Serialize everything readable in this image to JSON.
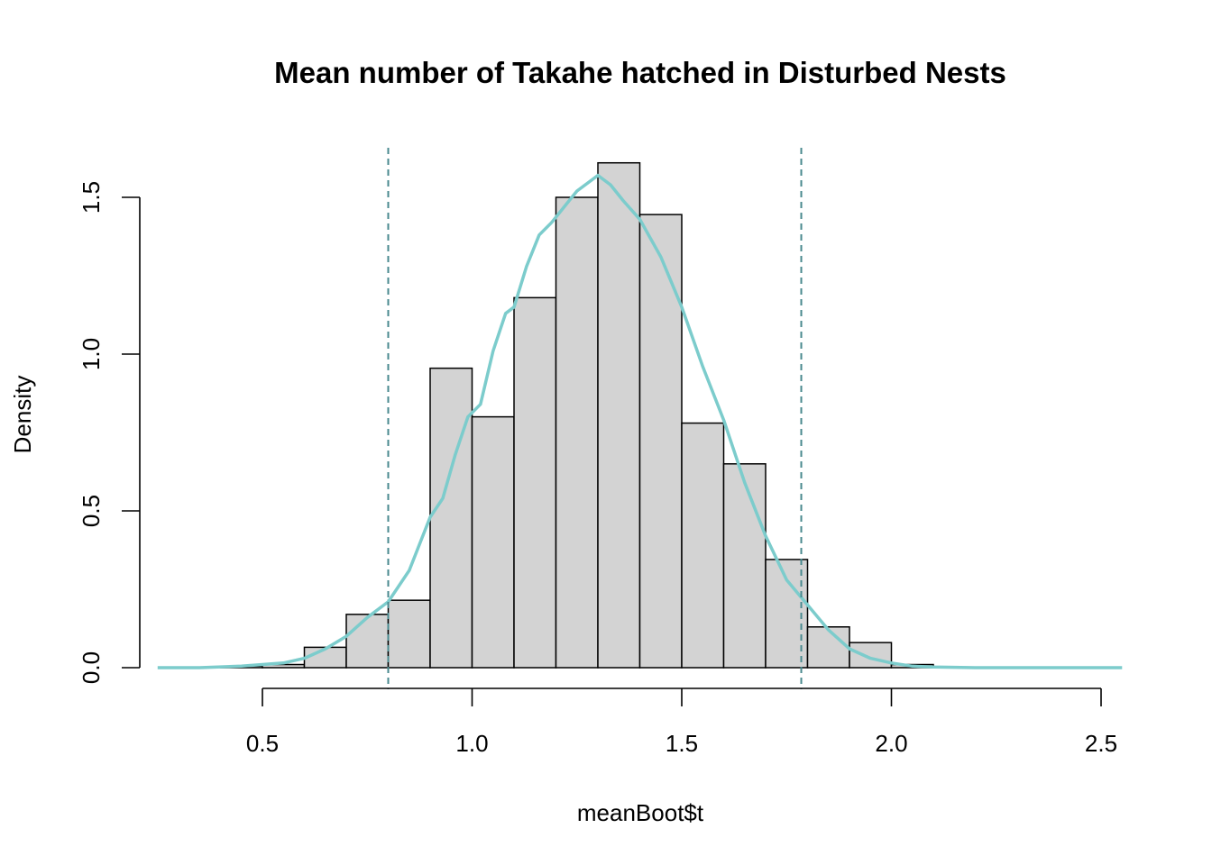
{
  "chart_data": {
    "type": "histogram",
    "title": "Mean number of Takahe hatched in Disturbed Nests",
    "xlabel": "meanBoot$t",
    "ylabel": "Density",
    "xlim": [
      0.25,
      2.55
    ],
    "ylim": [
      0,
      1.6
    ],
    "x_ticks": [
      {
        "value": 0.5,
        "label": "0.5"
      },
      {
        "value": 1.0,
        "label": "1.0"
      },
      {
        "value": 1.5,
        "label": "1.5"
      },
      {
        "value": 2.0,
        "label": "2.0"
      },
      {
        "value": 2.5,
        "label": "2.5"
      }
    ],
    "y_ticks": [
      {
        "value": 0.0,
        "label": "0.0"
      },
      {
        "value": 0.5,
        "label": "0.5"
      },
      {
        "value": 1.0,
        "label": "1.0"
      },
      {
        "value": 1.5,
        "label": "1.5"
      }
    ],
    "bins": [
      {
        "from": 0.4,
        "to": 0.5,
        "density": 0.005
      },
      {
        "from": 0.5,
        "to": 0.6,
        "density": 0.01
      },
      {
        "from": 0.6,
        "to": 0.7,
        "density": 0.065
      },
      {
        "from": 0.7,
        "to": 0.8,
        "density": 0.17
      },
      {
        "from": 0.8,
        "to": 0.9,
        "density": 0.215
      },
      {
        "from": 0.9,
        "to": 1.0,
        "density": 0.955
      },
      {
        "from": 1.0,
        "to": 1.1,
        "density": 0.8
      },
      {
        "from": 1.1,
        "to": 1.2,
        "density": 1.18
      },
      {
        "from": 1.2,
        "to": 1.3,
        "density": 1.5
      },
      {
        "from": 1.3,
        "to": 1.4,
        "density": 1.61
      },
      {
        "from": 1.4,
        "to": 1.5,
        "density": 1.445
      },
      {
        "from": 1.5,
        "to": 1.6,
        "density": 0.78
      },
      {
        "from": 1.6,
        "to": 1.7,
        "density": 0.65
      },
      {
        "from": 1.7,
        "to": 1.8,
        "density": 0.345
      },
      {
        "from": 1.8,
        "to": 1.9,
        "density": 0.13
      },
      {
        "from": 1.9,
        "to": 2.0,
        "density": 0.08
      },
      {
        "from": 2.0,
        "to": 2.1,
        "density": 0.01
      }
    ],
    "density_curve": {
      "x": [
        0.25,
        0.35,
        0.45,
        0.55,
        0.6,
        0.65,
        0.7,
        0.75,
        0.8,
        0.85,
        0.9,
        0.93,
        0.96,
        0.99,
        1.02,
        1.05,
        1.08,
        1.1,
        1.13,
        1.16,
        1.19,
        1.22,
        1.25,
        1.28,
        1.3,
        1.33,
        1.36,
        1.4,
        1.45,
        1.5,
        1.55,
        1.6,
        1.65,
        1.7,
        1.75,
        1.8,
        1.85,
        1.9,
        1.95,
        2.0,
        2.05,
        2.1,
        2.2,
        2.35,
        2.55
      ],
      "y": [
        0.0,
        0.0,
        0.005,
        0.015,
        0.03,
        0.06,
        0.1,
        0.16,
        0.21,
        0.31,
        0.48,
        0.54,
        0.68,
        0.8,
        0.84,
        1.01,
        1.13,
        1.15,
        1.28,
        1.38,
        1.42,
        1.47,
        1.52,
        1.55,
        1.57,
        1.54,
        1.49,
        1.43,
        1.31,
        1.15,
        0.96,
        0.79,
        0.59,
        0.42,
        0.28,
        0.2,
        0.12,
        0.06,
        0.03,
        0.015,
        0.005,
        0.002,
        0.0,
        0.0,
        0.0
      ],
      "color": "#7ccccc"
    },
    "ci_lines": {
      "values": [
        0.8,
        1.785
      ],
      "color": "#4a8a8f",
      "style": "dashed"
    },
    "bar_fill": "#d3d3d3",
    "grid": false
  }
}
